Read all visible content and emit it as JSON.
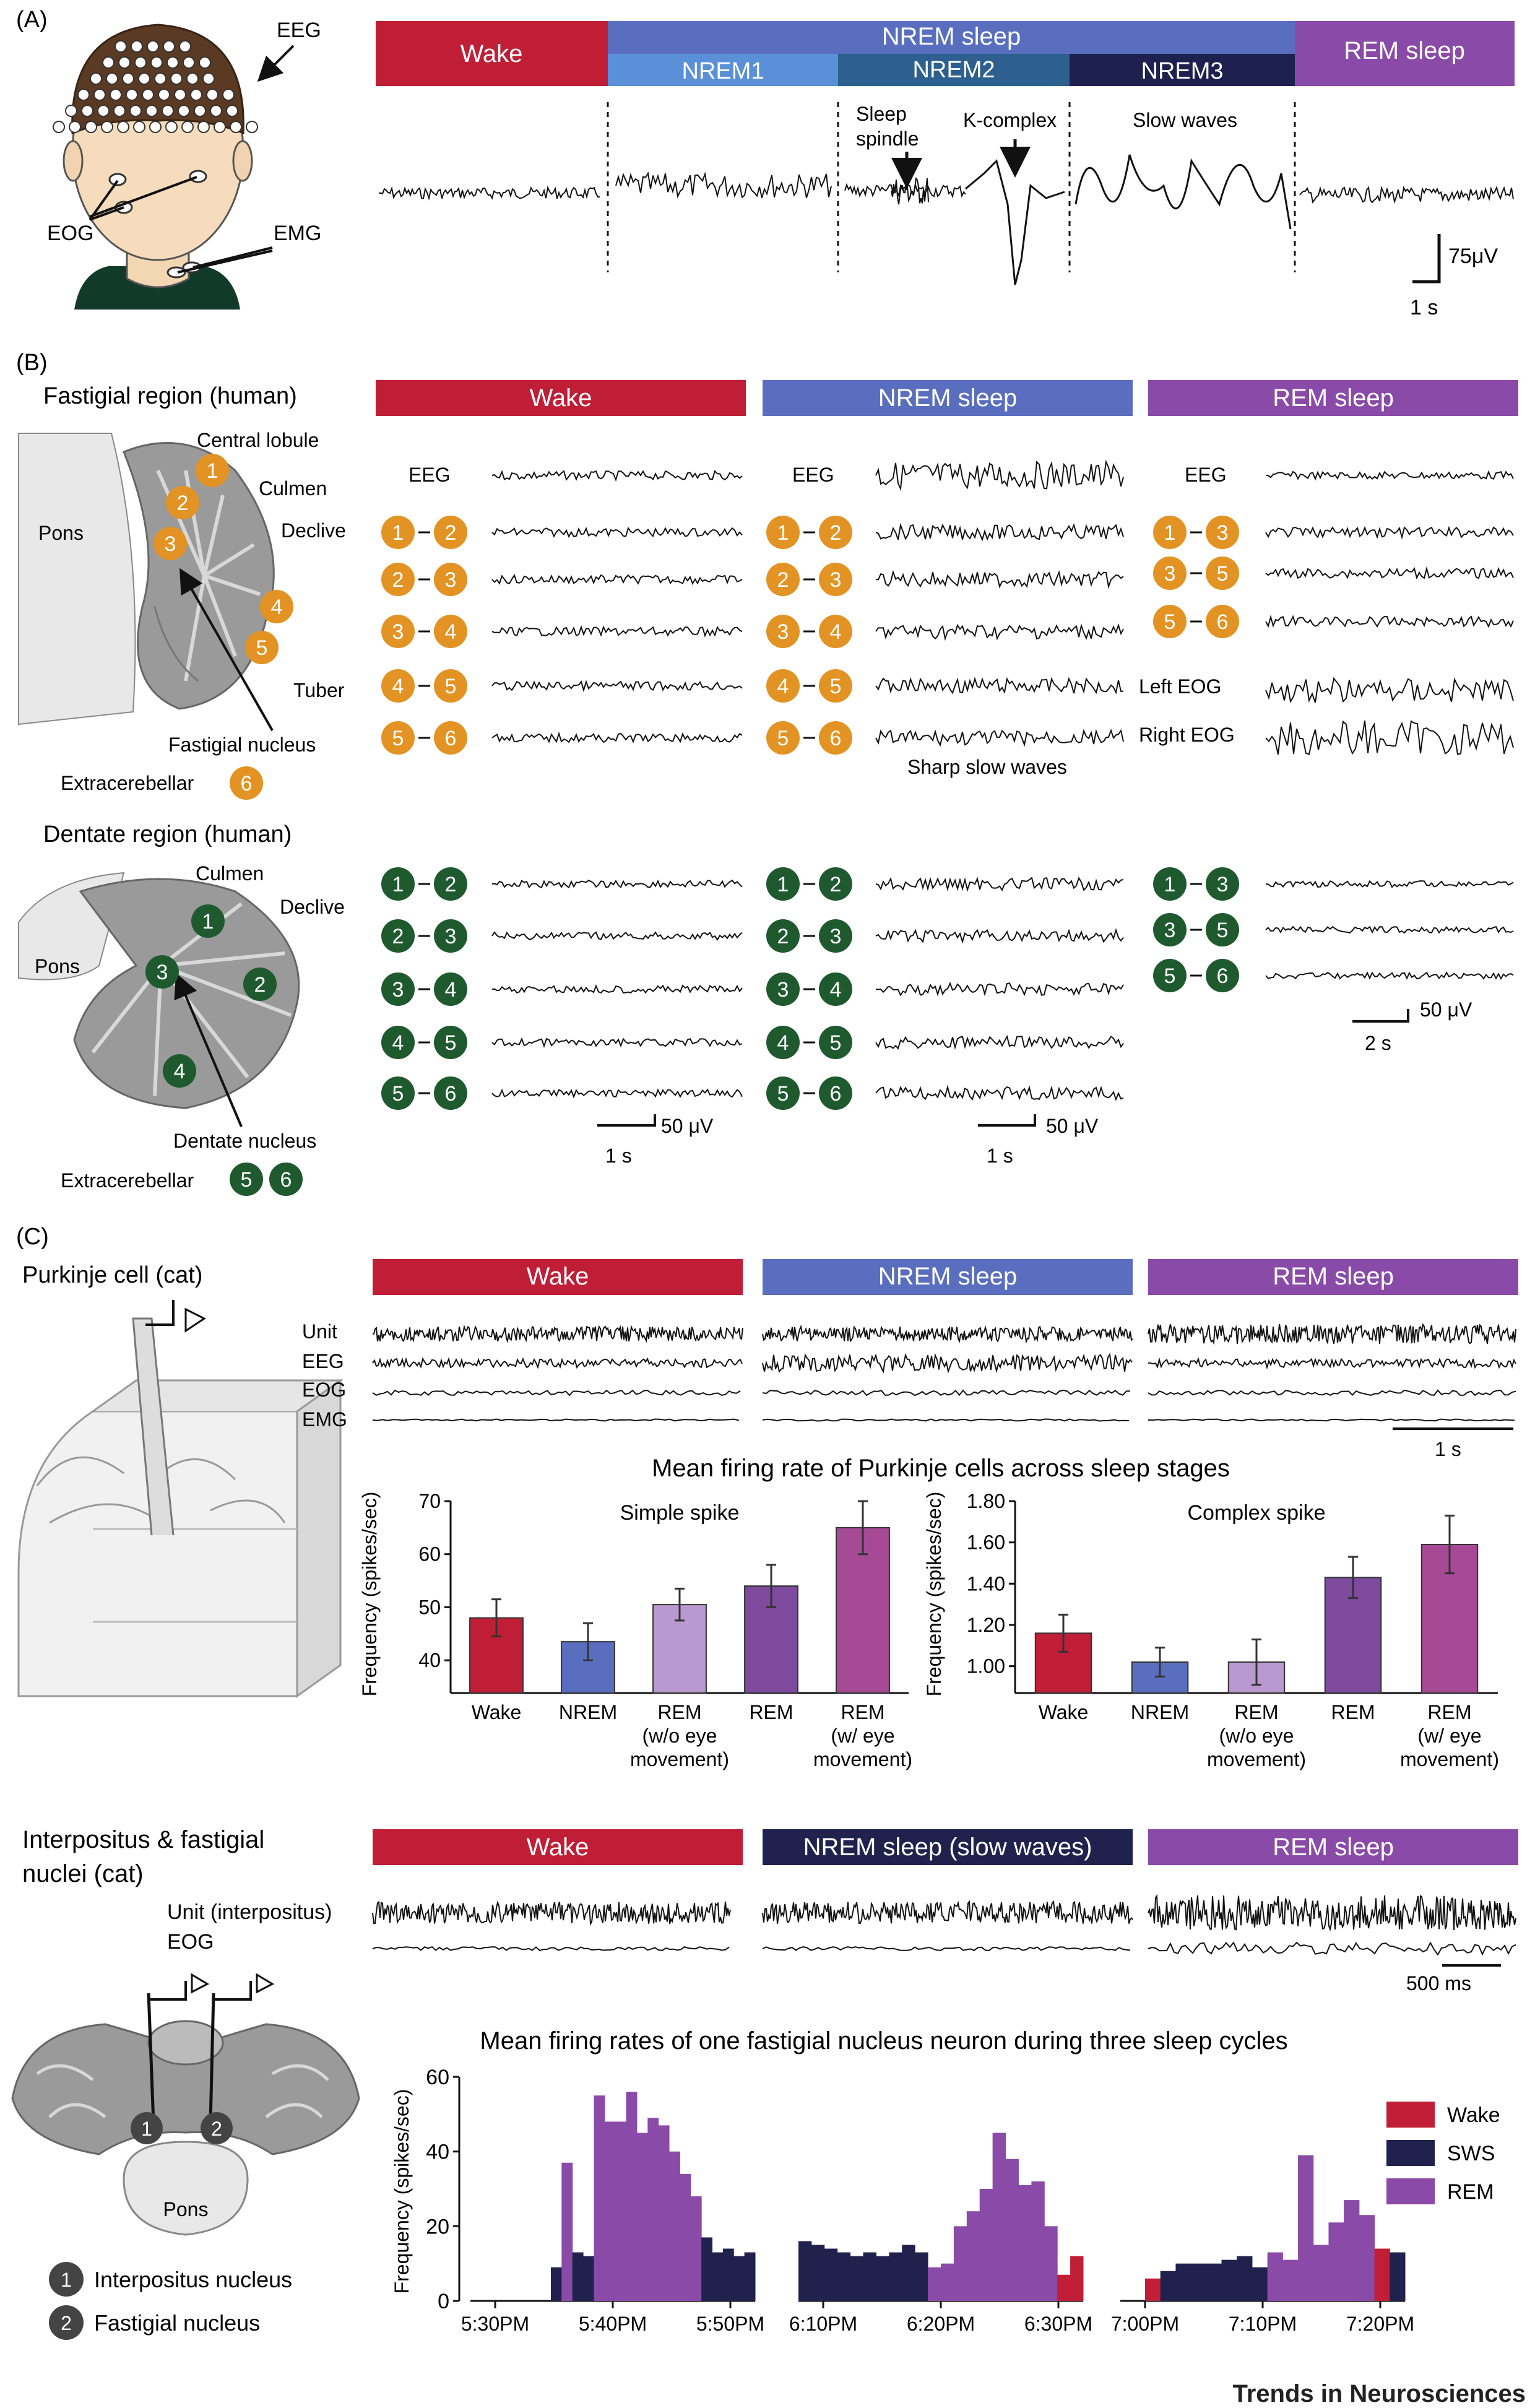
{
  "panel_a": {
    "label": "(A)",
    "head": {
      "eeg": "EEG",
      "eog": "EOG",
      "emg": "EMG"
    },
    "stages": {
      "wake": "Wake",
      "nrem": "NREM sleep",
      "nrem1": "NREM1",
      "nrem2": "NREM2",
      "nrem3": "NREM3",
      "rem": "REM sleep"
    },
    "annotations": {
      "spindle_1": "Sleep",
      "spindle_2": "spindle",
      "kcomplex": "K-complex",
      "slow_waves": "Slow waves"
    },
    "scale": {
      "y": "75μV",
      "x": "1 s"
    }
  },
  "panel_b": {
    "label": "(B)",
    "fastigial": {
      "title": "Fastigial region (human)",
      "labels": {
        "pons": "Pons",
        "central_lobule": "Central lobule",
        "culmen": "Culmen",
        "declive": "Declive",
        "tuber": "Tuber",
        "nucleus": "Fastigial nucleus",
        "extra": "Extracerebellar"
      },
      "electrodes": [
        "1",
        "2",
        "3",
        "4",
        "5",
        "6"
      ]
    },
    "dentate": {
      "title": "Dentate region (human)",
      "labels": {
        "pons": "Pons",
        "culmen": "Culmen",
        "declive": "Declive",
        "nucleus": "Dentate nucleus",
        "extra": "Extracerebellar"
      },
      "electrodes": [
        "1",
        "2",
        "3",
        "4",
        "5",
        "6"
      ]
    },
    "stages": {
      "wake": "Wake",
      "nrem": "NREM sleep",
      "rem": "REM sleep"
    },
    "eeg": "EEG",
    "left_eog": "Left EOG",
    "right_eog": "Right EOG",
    "sharp_slow_waves": "Sharp slow waves",
    "scale_uv": "50 μV",
    "scale_1s": "1 s",
    "scale_2s": "2 s"
  },
  "panel_c": {
    "label": "(C)",
    "purkinje": {
      "title": "Purkinje cell (cat)",
      "stages": {
        "wake": "Wake",
        "nrem": "NREM sleep",
        "rem": "REM sleep"
      },
      "traces": [
        "Unit",
        "EEG",
        "EOG",
        "EMG"
      ],
      "scale": "1 s"
    },
    "bar_title": "Mean firing rate of Purkinje cells across sleep stages",
    "bar_categories": [
      "Wake",
      "NREM",
      "REM (w/o eye movement)",
      "REM",
      "REM (w/ eye movement)"
    ],
    "interpositus": {
      "title_1": "Interpositus & fastigial",
      "title_2": "nuclei (cat)",
      "stages": {
        "wake": "Wake",
        "nrem": "NREM sleep (slow waves)",
        "rem": "REM sleep"
      },
      "traces": [
        "Unit (interpositus)",
        "EOG"
      ],
      "scale": "500 ms"
    },
    "bottom_brain": {
      "pons": "Pons",
      "n1": "Interpositus nucleus",
      "n2": "Fastigial nucleus"
    },
    "hist_title": "Mean firing rates of one fastigial nucleus neuron during three sleep cycles",
    "legend": [
      "Wake",
      "SWS",
      "REM"
    ]
  },
  "colors": {
    "wake": "#c01e36",
    "nrem": "#5a6ebf",
    "nrem1": "#5a90d8",
    "nrem2": "#2d5f8f",
    "nrem3": "#1e2050",
    "rem": "#8a4aa8",
    "orange": "#e39323",
    "green": "#1e5a2e",
    "sws": "#20224d",
    "rem_hist": "#8a4aa8"
  },
  "chart_data": [
    {
      "type": "bar",
      "title": "Simple spike",
      "ylabel": "Frequency (spikes/sec)",
      "categories": [
        "Wake",
        "NREM",
        "REM (w/o eye movement)",
        "REM",
        "REM (w/ eye movement)"
      ],
      "values": [
        48,
        43.5,
        50.5,
        54,
        65
      ],
      "errors": [
        3.5,
        3.5,
        3,
        4,
        5
      ],
      "ylim": [
        35,
        70
      ],
      "yticks": [
        "40",
        "50",
        "60",
        "70"
      ],
      "colors": [
        "#c01e36",
        "#5a6ebf",
        "#b99ad0",
        "#7d4a9e",
        "#a64a96"
      ]
    },
    {
      "type": "bar",
      "title": "Complex spike",
      "ylabel": "Frequency (spikes/sec)",
      "categories": [
        "Wake",
        "NREM",
        "REM (w/o eye movement)",
        "REM",
        "REM (w/ eye movement)"
      ],
      "values": [
        1.16,
        1.02,
        1.02,
        1.43,
        1.59
      ],
      "errors": [
        0.09,
        0.07,
        0.11,
        0.1,
        0.14
      ],
      "ylim": [
        0.9,
        1.8
      ],
      "yticks": [
        "1.00",
        "1.20",
        "1.40",
        "1.60",
        "1.80"
      ],
      "colors": [
        "#c01e36",
        "#5a6ebf",
        "#b99ad0",
        "#7d4a9e",
        "#a64a96"
      ]
    },
    {
      "type": "bar",
      "title": "Mean firing rates of one fastigial nucleus neuron during three sleep cycles",
      "ylabel": "Frequency (spikes/sec)",
      "ylim": [
        0,
        60
      ],
      "yticks": [
        "0",
        "20",
        "40",
        "60"
      ],
      "legend": [
        "Wake",
        "SWS",
        "REM"
      ],
      "cycles": [
        {
          "xticks": [
            "5:30PM",
            "5:40PM",
            "5:50PM"
          ],
          "bins": [
            {
              "s": "SWS",
              "v": 9
            },
            {
              "s": "REM",
              "v": 37
            },
            {
              "s": "SWS",
              "v": 13
            },
            {
              "s": "SWS",
              "v": 12
            },
            {
              "s": "REM",
              "v": 55
            },
            {
              "s": "REM",
              "v": 48
            },
            {
              "s": "REM",
              "v": 48
            },
            {
              "s": "REM",
              "v": 56
            },
            {
              "s": "REM",
              "v": 45
            },
            {
              "s": "REM",
              "v": 49
            },
            {
              "s": "REM",
              "v": 47
            },
            {
              "s": "REM",
              "v": 40
            },
            {
              "s": "REM",
              "v": 34
            },
            {
              "s": "REM",
              "v": 28
            },
            {
              "s": "SWS",
              "v": 17
            },
            {
              "s": "SWS",
              "v": 13
            },
            {
              "s": "SWS",
              "v": 14
            },
            {
              "s": "SWS",
              "v": 12
            },
            {
              "s": "SWS",
              "v": 13
            }
          ]
        },
        {
          "xticks": [
            "6:10PM",
            "6:20PM",
            "6:30PM"
          ],
          "bins": [
            {
              "s": "SWS",
              "v": 16
            },
            {
              "s": "SWS",
              "v": 15
            },
            {
              "s": "SWS",
              "v": 14
            },
            {
              "s": "SWS",
              "v": 13
            },
            {
              "s": "SWS",
              "v": 12
            },
            {
              "s": "SWS",
              "v": 13
            },
            {
              "s": "SWS",
              "v": 12
            },
            {
              "s": "SWS",
              "v": 13
            },
            {
              "s": "SWS",
              "v": 15
            },
            {
              "s": "SWS",
              "v": 13
            },
            {
              "s": "REM",
              "v": 9
            },
            {
              "s": "REM",
              "v": 10
            },
            {
              "s": "REM",
              "v": 20
            },
            {
              "s": "REM",
              "v": 24
            },
            {
              "s": "REM",
              "v": 30
            },
            {
              "s": "REM",
              "v": 45
            },
            {
              "s": "REM",
              "v": 38
            },
            {
              "s": "REM",
              "v": 31
            },
            {
              "s": "REM",
              "v": 32
            },
            {
              "s": "REM",
              "v": 20
            },
            {
              "s": "Wake",
              "v": 7
            },
            {
              "s": "Wake",
              "v": 12
            }
          ]
        },
        {
          "xticks": [
            "7:00PM",
            "7:10PM",
            "7:20PM"
          ],
          "bins": [
            {
              "s": "Wake",
              "v": 6
            },
            {
              "s": "SWS",
              "v": 8
            },
            {
              "s": "SWS",
              "v": 10
            },
            {
              "s": "SWS",
              "v": 10
            },
            {
              "s": "SWS",
              "v": 10
            },
            {
              "s": "SWS",
              "v": 11
            },
            {
              "s": "SWS",
              "v": 12
            },
            {
              "s": "SWS",
              "v": 9
            },
            {
              "s": "REM",
              "v": 13
            },
            {
              "s": "REM",
              "v": 11
            },
            {
              "s": "REM",
              "v": 39
            },
            {
              "s": "REM",
              "v": 15
            },
            {
              "s": "REM",
              "v": 21
            },
            {
              "s": "REM",
              "v": 27
            },
            {
              "s": "REM",
              "v": 23
            },
            {
              "s": "Wake",
              "v": 14
            },
            {
              "s": "SWS",
              "v": 13
            }
          ]
        }
      ]
    }
  ],
  "footer": "Trends in Neurosciences"
}
